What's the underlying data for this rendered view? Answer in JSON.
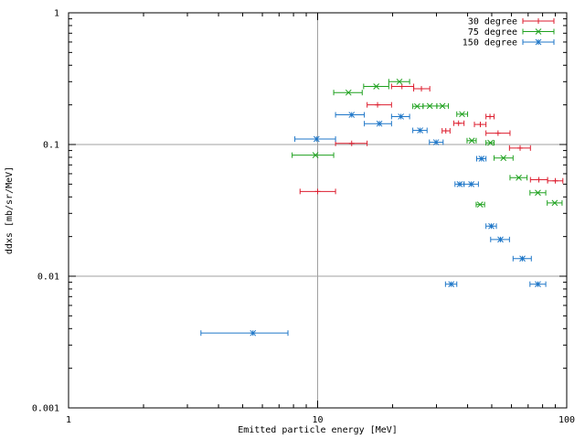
{
  "chart_data": {
    "type": "scatter",
    "title": "",
    "xlabel": "Emitted particle energy [MeV]",
    "ylabel": "ddxs [mb/sr/MeV]",
    "x_scale": "log",
    "y_scale": "log",
    "xlim": [
      1,
      100
    ],
    "ylim": [
      0.001,
      1
    ],
    "x_ticks": [
      {
        "value": 1,
        "label": "1"
      },
      {
        "value": 10,
        "label": "10"
      },
      {
        "value": 100,
        "label": "100"
      }
    ],
    "y_ticks": [
      {
        "value": 0.001,
        "label": "0.001"
      },
      {
        "value": 0.01,
        "label": "0.01"
      },
      {
        "value": 0.1,
        "label": "0.1"
      },
      {
        "value": 1,
        "label": "1"
      }
    ],
    "grid": "major",
    "legend_position": "top-right",
    "series": [
      {
        "name": "30 degree",
        "color": "#dd1e2f",
        "marker": "plus",
        "points": [
          {
            "x": 10,
            "xlo": 8.5,
            "xhi": 11.8,
            "y": 0.044
          },
          {
            "x": 13.7,
            "xlo": 11.8,
            "xhi": 15.8,
            "y": 0.102
          },
          {
            "x": 17.4,
            "xlo": 15.8,
            "xhi": 19.8,
            "y": 0.2
          },
          {
            "x": 21.8,
            "xlo": 19.8,
            "xhi": 24.3,
            "y": 0.276
          },
          {
            "x": 26.1,
            "xlo": 24.3,
            "xhi": 28.2,
            "y": 0.265
          },
          {
            "x": 32.7,
            "xlo": 31.6,
            "xhi": 34,
            "y": 0.127
          },
          {
            "x": 36.8,
            "xlo": 35.2,
            "xhi": 38.7,
            "y": 0.145
          },
          {
            "x": 45,
            "xlo": 42.6,
            "xhi": 47.4,
            "y": 0.142
          },
          {
            "x": 49.2,
            "xlo": 47.4,
            "xhi": 51.1,
            "y": 0.163
          },
          {
            "x": 53,
            "xlo": 47.4,
            "xhi": 59.2,
            "y": 0.122
          },
          {
            "x": 65,
            "xlo": 58.9,
            "xhi": 71.5,
            "y": 0.094
          },
          {
            "x": 77.3,
            "xlo": 71.5,
            "xhi": 83.8,
            "y": 0.054
          },
          {
            "x": 90,
            "xlo": 83.8,
            "xhi": 96.5,
            "y": 0.053
          }
        ]
      },
      {
        "name": "75 degree",
        "color": "#1fa11f",
        "marker": "cross",
        "points": [
          {
            "x": 9.8,
            "xlo": 7.9,
            "xhi": 11.6,
            "y": 0.083
          },
          {
            "x": 13.3,
            "xlo": 11.6,
            "xhi": 15.1,
            "y": 0.248
          },
          {
            "x": 17.2,
            "xlo": 15.3,
            "xhi": 19.3,
            "y": 0.276
          },
          {
            "x": 21.3,
            "xlo": 19.3,
            "xhi": 23.4,
            "y": 0.3
          },
          {
            "x": 25.1,
            "xlo": 24.1,
            "xhi": 26.5,
            "y": 0.195
          },
          {
            "x": 28.2,
            "xlo": 26.5,
            "xhi": 30.1,
            "y": 0.196
          },
          {
            "x": 31.7,
            "xlo": 30.1,
            "xhi": 33.5,
            "y": 0.196
          },
          {
            "x": 38,
            "xlo": 36.2,
            "xhi": 40,
            "y": 0.17
          },
          {
            "x": 41.6,
            "xlo": 39.8,
            "xhi": 43.3,
            "y": 0.107
          },
          {
            "x": 44.9,
            "xlo": 43.3,
            "xhi": 46.8,
            "y": 0.035
          },
          {
            "x": 49.4,
            "xlo": 47.4,
            "xhi": 51.1,
            "y": 0.103
          },
          {
            "x": 55.7,
            "xlo": 51.1,
            "xhi": 60.9,
            "y": 0.079
          },
          {
            "x": 64.2,
            "xlo": 59.2,
            "xhi": 69.3,
            "y": 0.056
          },
          {
            "x": 76.6,
            "xlo": 71.2,
            "xhi": 82.4,
            "y": 0.043
          },
          {
            "x": 89.5,
            "xlo": 83.5,
            "xhi": 95.8,
            "y": 0.036
          }
        ]
      },
      {
        "name": "150 degree",
        "color": "#1f77c8",
        "marker": "star",
        "points": [
          {
            "x": 5.5,
            "xlo": 3.4,
            "xhi": 7.6,
            "y": 0.0037
          },
          {
            "x": 9.9,
            "xlo": 8.1,
            "xhi": 11.8,
            "y": 0.11
          },
          {
            "x": 13.7,
            "xlo": 11.8,
            "xhi": 15.4,
            "y": 0.168
          },
          {
            "x": 17.7,
            "xlo": 15.4,
            "xhi": 19.8,
            "y": 0.144
          },
          {
            "x": 21.6,
            "xlo": 19.8,
            "xhi": 23.4,
            "y": 0.163
          },
          {
            "x": 25.8,
            "xlo": 24.1,
            "xhi": 27.5,
            "y": 0.128
          },
          {
            "x": 29.9,
            "xlo": 28.1,
            "xhi": 31.9,
            "y": 0.104
          },
          {
            "x": 34.4,
            "xlo": 32.6,
            "xhi": 36.2,
            "y": 0.0087
          },
          {
            "x": 37.2,
            "xlo": 35.6,
            "xhi": 38.7,
            "y": 0.05
          },
          {
            "x": 41.4,
            "xlo": 38.7,
            "xhi": 44.2,
            "y": 0.05
          },
          {
            "x": 45.5,
            "xlo": 43.5,
            "xhi": 47.4,
            "y": 0.078
          },
          {
            "x": 49.8,
            "xlo": 47.4,
            "xhi": 52.2,
            "y": 0.024
          },
          {
            "x": 54.2,
            "xlo": 49.5,
            "xhi": 58.9,
            "y": 0.019
          },
          {
            "x": 66.4,
            "xlo": 60.9,
            "xhi": 72.1,
            "y": 0.0136
          },
          {
            "x": 76.6,
            "xlo": 71.2,
            "xhi": 82.4,
            "y": 0.0087
          }
        ]
      }
    ]
  }
}
